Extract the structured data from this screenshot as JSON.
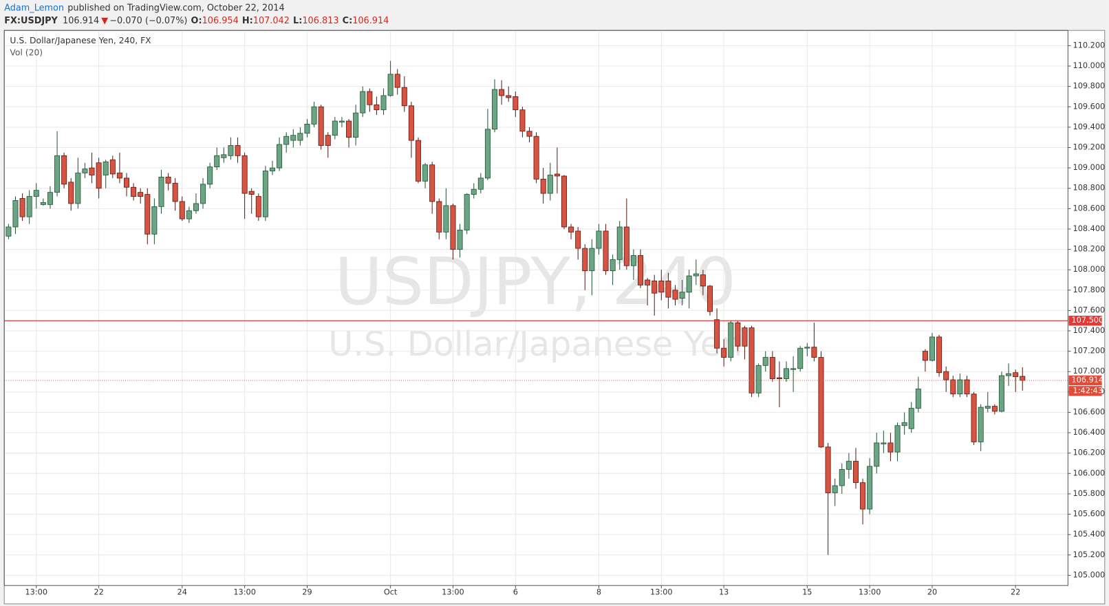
{
  "header": {
    "author": "Adam_Lemon",
    "published": "published on TradingView.com, October 22, 2014",
    "symbol": "FX:USDJPY",
    "last": "106.914",
    "change": "−0.070 (−0.07%)",
    "ohlc": [
      {
        "label": "O:",
        "value": "106.954"
      },
      {
        "label": "H:",
        "value": "107.042"
      },
      {
        "label": "L:",
        "value": "106.813"
      },
      {
        "label": "C:",
        "value": "106.914"
      }
    ]
  },
  "chart_data": {
    "type": "candlestick",
    "title": "U.S. Dollar/Japanese Yen, 240, FX",
    "indicator": "Vol (20)",
    "watermark": [
      "USDJPY, 240",
      "U.S. Dollar/Japanese Yen"
    ],
    "categories": [
      null,
      null,
      null,
      null,
      "13:00",
      null,
      null,
      null,
      null,
      null,
      null,
      null,
      null,
      "22",
      null,
      null,
      null,
      null,
      null,
      null,
      null,
      null,
      null,
      null,
      null,
      "24",
      null,
      null,
      null,
      null,
      null,
      null,
      null,
      null,
      "13:00",
      null,
      null,
      null,
      null,
      null,
      null,
      null,
      null,
      "29",
      null,
      null,
      null,
      null,
      null,
      null,
      null,
      null,
      null,
      null,
      null,
      "Oct",
      null,
      null,
      null,
      null,
      null,
      null,
      null,
      null,
      "13:00",
      null,
      null,
      null,
      null,
      null,
      null,
      null,
      null,
      "6",
      null,
      null,
      null,
      null,
      null,
      null,
      null,
      null,
      null,
      null,
      null,
      "8",
      null,
      null,
      null,
      null,
      null,
      null,
      null,
      null,
      "13:00",
      null,
      null,
      null,
      null,
      null,
      null,
      null,
      null,
      "13",
      null,
      null,
      null,
      null,
      null,
      null,
      null,
      null,
      null,
      null,
      null,
      "15",
      null,
      null,
      null,
      null,
      null,
      null,
      null,
      null,
      "13:00",
      null,
      null,
      null,
      null,
      null,
      null,
      null,
      null,
      "20",
      null,
      null,
      null,
      null,
      null,
      null,
      null,
      null,
      null,
      null,
      null,
      "22",
      null
    ],
    "open": [
      108.33,
      108.42,
      108.7,
      108.52,
      108.72,
      108.64,
      108.64,
      108.76,
      109.12,
      108.86,
      108.65,
      108.95,
      109.0,
      109.05,
      108.93,
      109.08,
      108.95,
      108.9,
      108.81,
      108.76,
      108.74,
      108.35,
      108.62,
      108.91,
      108.85,
      108.67,
      108.5,
      108.58,
      108.65,
      108.84,
      109.01,
      109.1,
      109.12,
      109.22,
      109.12,
      108.77,
      108.72,
      108.52,
      108.97,
      109.0,
      109.23,
      109.27,
      109.27,
      109.34,
      109.43,
      109.6,
      109.32,
      109.32,
      109.45,
      109.46,
      109.3,
      109.54,
      109.75,
      109.62,
      109.57,
      109.71,
      109.92,
      109.79,
      109.61,
      109.27,
      108.87,
      109.03,
      108.67,
      108.37,
      108.63,
      108.2,
      108.39,
      108.74,
      108.79,
      108.9,
      109.38,
      109.77,
      109.71,
      109.7,
      109.57,
      109.36,
      109.31,
      108.89,
      108.75,
      108.94,
      108.92,
      108.42,
      108.38,
      108.21,
      107.99,
      108.21,
      108.38,
      107.99,
      108.1,
      108.42,
      108.04,
      108.14,
      107.9,
      107.89,
      107.89,
      107.89,
      107.8,
      107.72,
      107.78,
      107.94,
      107.95,
      107.84,
      107.51,
      107.23,
      107.14,
      107.48,
      107.43,
      107.43,
      106.79,
      107.06,
      107.14,
      106.94,
      106.93,
      107.02,
      107.03,
      107.23,
      107.24,
      107.14,
      106.26,
      105.81,
      105.88,
      106.04,
      106.12,
      105.91,
      105.65,
      106.07,
      106.29,
      106.3,
      106.21,
      106.47,
      106.44,
      106.64,
      107.2,
      107.11,
      107.34,
      107.0,
      106.92,
      106.78,
      106.92,
      106.78,
      106.31,
      106.64,
      106.66,
      106.61,
      106.96,
      106.99,
      106.954
    ],
    "high": [
      108.45,
      108.72,
      108.75,
      108.78,
      108.85,
      108.7,
      108.82,
      109.36,
      109.15,
      108.9,
      109.1,
      109.05,
      109.15,
      109.1,
      109.08,
      109.12,
      109.15,
      108.95,
      108.85,
      108.8,
      108.8,
      108.7,
      108.98,
      108.95,
      108.9,
      108.72,
      108.62,
      108.75,
      108.9,
      109.05,
      109.2,
      109.2,
      109.3,
      109.3,
      109.15,
      108.8,
      108.75,
      109.02,
      109.07,
      109.3,
      109.35,
      109.38,
      109.4,
      109.48,
      109.65,
      109.62,
      109.35,
      109.5,
      109.5,
      109.48,
      109.62,
      109.8,
      109.78,
      109.7,
      109.78,
      110.05,
      109.97,
      109.9,
      109.65,
      109.3,
      109.05,
      109.06,
      108.7,
      108.8,
      108.65,
      108.45,
      108.75,
      108.85,
      108.95,
      109.58,
      109.87,
      109.86,
      109.8,
      109.75,
      109.6,
      109.4,
      109.35,
      109.0,
      109.05,
      109.2,
      108.93,
      108.45,
      108.42,
      108.25,
      108.3,
      108.45,
      108.45,
      108.15,
      108.48,
      108.7,
      108.2,
      108.2,
      107.92,
      107.95,
      108.0,
      107.97,
      107.85,
      107.9,
      108.0,
      108.1,
      108.0,
      107.85,
      107.62,
      107.32,
      107.5,
      107.5,
      107.45,
      107.45,
      107.08,
      107.2,
      107.2,
      107.1,
      107.1,
      107.15,
      107.25,
      107.28,
      107.48,
      107.2,
      106.3,
      105.95,
      106.1,
      106.2,
      106.25,
      105.95,
      106.15,
      106.4,
      106.42,
      106.4,
      106.5,
      106.6,
      106.7,
      106.95,
      107.22,
      107.38,
      107.36,
      107.05,
      106.96,
      106.98,
      106.96,
      106.8,
      106.68,
      106.8,
      106.68,
      107.0,
      107.08,
      107.02,
      107.042
    ],
    "low": [
      108.3,
      108.35,
      108.48,
      108.45,
      108.6,
      108.63,
      108.6,
      108.72,
      108.8,
      108.58,
      108.6,
      108.9,
      108.85,
      108.7,
      108.8,
      108.9,
      108.85,
      108.72,
      108.68,
      108.65,
      108.25,
      108.25,
      108.55,
      108.78,
      108.58,
      108.48,
      108.46,
      108.55,
      108.6,
      108.8,
      108.98,
      109.05,
      109.08,
      109.05,
      108.5,
      108.55,
      108.48,
      108.48,
      108.93,
      108.97,
      109.15,
      109.2,
      109.22,
      109.3,
      109.4,
      109.18,
      109.1,
      109.28,
      109.4,
      109.2,
      109.22,
      109.5,
      109.55,
      109.52,
      109.52,
      109.7,
      109.72,
      109.55,
      109.1,
      108.85,
      108.8,
      108.55,
      108.3,
      108.3,
      108.1,
      108.12,
      108.35,
      108.7,
      108.75,
      108.88,
      109.35,
      109.62,
      109.65,
      109.5,
      109.3,
      109.25,
      108.85,
      108.65,
      108.68,
      108.75,
      108.4,
      108.3,
      108.1,
      107.8,
      107.75,
      108.15,
      107.95,
      107.85,
      108.0,
      108.0,
      107.9,
      107.82,
      107.65,
      107.55,
      107.7,
      107.62,
      107.65,
      107.65,
      107.62,
      107.85,
      107.75,
      107.55,
      107.18,
      107.05,
      107.1,
      107.2,
      107.12,
      106.75,
      106.75,
      107.0,
      106.9,
      106.65,
      106.9,
      106.8,
      107.0,
      107.15,
      107.1,
      106.25,
      105.2,
      105.68,
      105.8,
      105.95,
      105.85,
      105.5,
      105.6,
      106.0,
      106.2,
      106.12,
      106.12,
      106.38,
      106.4,
      106.6,
      107.0,
      107.1,
      106.95,
      106.8,
      106.75,
      106.75,
      106.75,
      106.28,
      106.22,
      106.6,
      106.58,
      106.6,
      106.86,
      106.8,
      106.813
    ],
    "close": [
      108.42,
      108.68,
      108.52,
      108.72,
      108.78,
      108.66,
      108.76,
      109.12,
      108.84,
      108.65,
      108.95,
      108.99,
      108.93,
      108.8,
      109.06,
      108.94,
      108.9,
      108.81,
      108.72,
      108.72,
      108.35,
      108.62,
      108.91,
      108.85,
      108.67,
      108.5,
      108.58,
      108.65,
      108.84,
      109.01,
      109.12,
      109.13,
      109.22,
      109.12,
      108.75,
      108.74,
      108.52,
      108.97,
      109.0,
      109.23,
      109.31,
      109.32,
      109.34,
      109.43,
      109.6,
      109.22,
      109.22,
      109.46,
      109.46,
      109.3,
      109.54,
      109.75,
      109.62,
      109.57,
      109.71,
      109.92,
      109.79,
      109.61,
      109.27,
      108.87,
      109.03,
      108.67,
      108.37,
      108.63,
      108.2,
      108.39,
      108.74,
      108.79,
      108.9,
      109.38,
      109.77,
      109.71,
      109.69,
      109.57,
      109.36,
      109.31,
      108.89,
      108.75,
      108.93,
      108.92,
      108.42,
      108.37,
      108.21,
      107.99,
      108.21,
      108.38,
      107.99,
      108.1,
      108.42,
      108.04,
      108.14,
      107.85,
      107.85,
      107.77,
      107.78,
      107.73,
      107.71,
      107.78,
      107.94,
      107.96,
      107.84,
      107.59,
      107.23,
      107.14,
      107.48,
      107.25,
      107.25,
      106.79,
      107.06,
      107.14,
      106.93,
      106.93,
      107.03,
      107.03,
      107.23,
      107.24,
      107.14,
      106.26,
      105.81,
      105.88,
      106.04,
      106.12,
      105.91,
      105.65,
      106.07,
      106.3,
      106.3,
      106.21,
      106.47,
      106.5,
      106.64,
      106.83,
      107.11,
      107.34,
      106.99,
      106.92,
      106.78,
      106.92,
      106.78,
      106.31,
      106.65,
      106.66,
      106.61,
      106.96,
      106.98,
      106.95,
      106.914
    ],
    "up_color": "#6ba583",
    "down_color": "#d75442",
    "ylim": [
      104.9,
      110.35
    ],
    "yticks": [
      {
        "value": 105,
        "label": "105.000"
      },
      {
        "value": 105.2,
        "label": "105.200"
      },
      {
        "value": 105.4,
        "label": "105.400"
      },
      {
        "value": 105.6,
        "label": "105.600"
      },
      {
        "value": 105.8,
        "label": "105.800"
      },
      {
        "value": 106,
        "label": "106.000"
      },
      {
        "value": 106.2,
        "label": "106.200"
      },
      {
        "value": 106.4,
        "label": "106.400"
      },
      {
        "value": 106.6,
        "label": "106.600"
      },
      {
        "value": 106.8,
        "label": "106.800"
      },
      {
        "value": 107,
        "label": "107.000"
      },
      {
        "value": 107.2,
        "label": "107.200"
      },
      {
        "value": 107.4,
        "label": "107.400"
      },
      {
        "value": 107.6,
        "label": "107.600"
      },
      {
        "value": 107.8,
        "label": "107.800"
      },
      {
        "value": 108,
        "label": "108.000"
      },
      {
        "value": 108.2,
        "label": "108.200"
      },
      {
        "value": 108.4,
        "label": "108.400"
      },
      {
        "value": 108.6,
        "label": "108.600"
      },
      {
        "value": 108.8,
        "label": "108.800"
      },
      {
        "value": 109,
        "label": "109.000"
      },
      {
        "value": 109.2,
        "label": "109.200"
      },
      {
        "value": 109.4,
        "label": "109.400"
      },
      {
        "value": 109.6,
        "label": "109.600"
      },
      {
        "value": 109.8,
        "label": "109.800"
      },
      {
        "value": 110,
        "label": "110.000"
      },
      {
        "value": 110.2,
        "label": "110.200"
      }
    ],
    "grid": true,
    "hline": {
      "value": 107.5,
      "label": "107.500",
      "color": "#e53935"
    },
    "last_price": {
      "value": 106.914,
      "label": "106.914",
      "countdown": "1:42:43",
      "color": "#e04b3a"
    }
  }
}
